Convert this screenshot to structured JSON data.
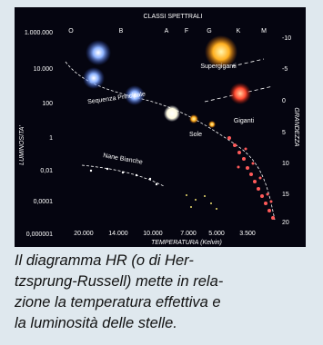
{
  "figure": {
    "top_label": "CLASSI SPETTRALI",
    "spectral_classes": [
      "O",
      "B",
      "A",
      "F",
      "G",
      "K",
      "M"
    ],
    "left_axis_label": "LUMINOSITA'",
    "left_ticks": [
      "1.000.000",
      "10.000",
      "100",
      "1",
      "0,01",
      "0,0001",
      "0,000001"
    ],
    "right_axis_label": "GRANDEZZA",
    "right_ticks": [
      "-10",
      "-5",
      "0",
      "5",
      "10",
      "15",
      "20"
    ],
    "bottom_ticks": [
      "20.000",
      "14.000",
      "10.000",
      "7.000",
      "5.000",
      "3.500"
    ],
    "bottom_axis_label": "TEMPERATURA (Kelvin)",
    "annotations": [
      "Supergiganti",
      "Sequenza Principale",
      "Giganti",
      "Sole",
      "Nane Bianche"
    ]
  },
  "caption": [
    "Il diagramma HR (o di Her-",
    "tzsprung-Russell) mette in rela-",
    "zione la temperatura effettiva e",
    "la luminosità delle stelle."
  ]
}
